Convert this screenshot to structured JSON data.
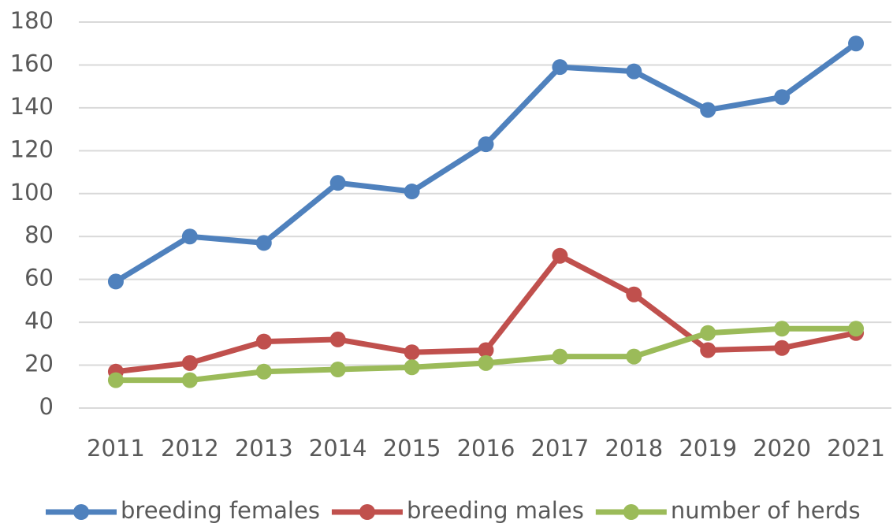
{
  "chart_data": {
    "type": "line",
    "categories": [
      "2011",
      "2012",
      "2013",
      "2014",
      "2015",
      "2016",
      "2017",
      "2018",
      "2019",
      "2020",
      "2021"
    ],
    "series": [
      {
        "name": "breeding females",
        "color": "#4f81bd",
        "values": [
          59,
          80,
          77,
          105,
          101,
          123,
          159,
          157,
          139,
          145,
          170
        ]
      },
      {
        "name": "breeding males",
        "color": "#c0504d",
        "values": [
          17,
          21,
          31,
          32,
          26,
          27,
          71,
          53,
          27,
          28,
          35
        ]
      },
      {
        "name": "number of herds",
        "color": "#9bbb59",
        "values": [
          13,
          13,
          17,
          18,
          19,
          21,
          24,
          24,
          35,
          37,
          37
        ]
      }
    ],
    "ylim": [
      0,
      180
    ],
    "yticks": [
      0,
      20,
      40,
      60,
      80,
      100,
      120,
      140,
      160,
      180
    ],
    "grid": true,
    "legend": "bottom"
  }
}
